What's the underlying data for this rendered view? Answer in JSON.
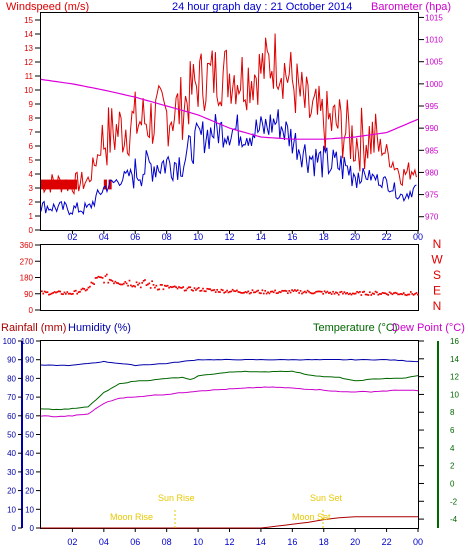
{
  "title": "24 hour graph day : 21 October 2014",
  "colors": {
    "wind": "#dd0000",
    "gust_fill": "#dd0000",
    "avg_wind": "#0000cc",
    "baro": "#dd00dd",
    "dir": "#ee0000",
    "rain": "#aa0000",
    "humidity": "#0000aa",
    "temperature": "#006600",
    "dewpoint": "#cc00cc",
    "sun": "#e8c800",
    "moon": "#e8c800"
  },
  "x_ticks": [
    "02",
    "04",
    "06",
    "08",
    "10",
    "12",
    "14",
    "16",
    "18",
    "20",
    "22",
    "00"
  ],
  "panel1": {
    "left_label": "Windspeed (m/s)",
    "right_label": "Barometer (hpa)",
    "left_ticks": [
      "0",
      "1",
      "2",
      "3",
      "4",
      "5",
      "6",
      "7",
      "8",
      "9",
      "10",
      "11",
      "12",
      "13",
      "14",
      "15"
    ],
    "right_ticks": [
      "970",
      "975",
      "980",
      "985",
      "990",
      "995",
      "1000",
      "1005",
      "1010",
      "1015"
    ]
  },
  "panel2": {
    "left_ticks": [
      "0",
      "90",
      "180",
      "270",
      "360"
    ],
    "compass": [
      "N",
      "W",
      "S",
      "E",
      "N"
    ]
  },
  "panel3": {
    "rain_label": "Rainfall (mm)",
    "hum_label": "Humidity (%)",
    "temp_label": "Temperature (°C)",
    "dew_label": "Dew Point (°C)",
    "rain_ticks": [
      "0",
      "10",
      "20",
      "30",
      "40",
      "50",
      "60",
      "70",
      "80",
      "90",
      "100"
    ],
    "hum_ticks": [
      "0",
      "10",
      "20",
      "30",
      "40",
      "50",
      "60",
      "70",
      "80",
      "90",
      "100"
    ],
    "temp_ticks": [
      "-4",
      "-2",
      "0",
      "2",
      "4",
      "6",
      "8",
      "10",
      "12",
      "14",
      "16"
    ],
    "sun_rise": "Sun Rise",
    "sun_set": "Sun Set",
    "moon_rise": "Moon Rise",
    "moon_set": "Moon Set"
  },
  "chart_data": [
    {
      "type": "line",
      "x_unit": "hours",
      "xlim": [
        0,
        24
      ],
      "ylim": [
        0,
        15.5
      ],
      "y2lim": [
        967,
        1016
      ],
      "series": [
        {
          "name": "Windspeed (m/s)",
          "x": [
            0,
            1,
            2,
            3,
            4,
            5,
            6,
            7,
            8,
            9,
            10,
            11,
            12,
            13,
            14,
            15,
            16,
            17,
            18,
            19,
            20,
            21,
            22,
            23,
            24
          ],
          "values": [
            3.3,
            3.4,
            3.3,
            3.5,
            6.5,
            7.2,
            7.7,
            7.9,
            8.2,
            8.8,
            10.6,
            11.1,
            11.2,
            10.9,
            11.4,
            12.3,
            10.6,
            8.5,
            7.7,
            7.5,
            6.4,
            6.7,
            5.5,
            3.9,
            4.6
          ]
        },
        {
          "name": "Average windspeed (m/s)",
          "x": [
            0,
            1,
            2,
            3,
            4,
            5,
            6,
            7,
            8,
            9,
            10,
            11,
            12,
            13,
            14,
            15,
            16,
            17,
            18,
            19,
            20,
            21,
            22,
            23,
            24
          ],
          "values": [
            1.7,
            1.6,
            1.5,
            1.5,
            3.0,
            3.6,
            4.1,
            4.6,
            4.8,
            4.9,
            6.5,
            7.1,
            7.2,
            7.0,
            7.1,
            7.8,
            6.5,
            5.3,
            4.8,
            4.6,
            4.1,
            3.8,
            3.4,
            2.4,
            3.1
          ]
        },
        {
          "name": "Barometer (hpa)",
          "x": [
            0,
            2,
            4,
            6,
            8,
            10,
            12,
            14,
            16,
            18,
            20,
            22,
            24
          ],
          "values": [
            1001,
            1000,
            998.6,
            997,
            995,
            993,
            990,
            988,
            987.5,
            987.5,
            988,
            989,
            992
          ]
        }
      ]
    },
    {
      "type": "scatter",
      "x_unit": "hours",
      "xlim": [
        0,
        24
      ],
      "ylim": [
        0,
        360
      ],
      "series": [
        {
          "name": "Wind direction (deg)",
          "x": [
            0,
            1,
            2,
            3,
            3.5,
            4,
            5,
            6,
            7,
            8,
            9,
            10,
            11,
            12,
            13,
            14,
            15,
            16,
            17,
            18,
            19,
            20,
            21,
            22,
            23,
            24
          ],
          "values": [
            95,
            95,
            93,
            118,
            165,
            175,
            160,
            150,
            140,
            128,
            118,
            115,
            108,
            105,
            102,
            100,
            100,
            102,
            100,
            97,
            93,
            92,
            93,
            93,
            92,
            90
          ]
        }
      ]
    },
    {
      "type": "line",
      "x_unit": "hours",
      "xlim": [
        0,
        24
      ],
      "ylim": [
        0,
        100
      ],
      "y2lim": [
        -5,
        16
      ],
      "series": [
        {
          "name": "Humidity (%)",
          "x": [
            0,
            2,
            4,
            6,
            8,
            10,
            12,
            14,
            16,
            18,
            20,
            22,
            24
          ],
          "values": [
            87,
            87,
            89,
            87,
            88,
            90,
            90,
            90,
            90,
            90,
            90,
            90,
            89
          ]
        },
        {
          "name": "Temperature (°C)",
          "x": [
            0,
            1,
            2,
            3,
            4,
            5,
            6,
            7,
            8,
            9,
            9.6,
            10,
            11,
            12,
            13,
            14,
            15,
            16,
            17,
            18,
            19,
            20,
            21,
            22,
            23,
            24
          ],
          "values": [
            8.4,
            8.3,
            8.4,
            8.6,
            10.2,
            11.2,
            11.5,
            11.6,
            11.8,
            11.9,
            11.6,
            12.1,
            12.3,
            12.5,
            12.6,
            12.5,
            12.6,
            12.6,
            12.2,
            12,
            11.9,
            11.5,
            11.7,
            11.8,
            11.8,
            12.1
          ]
        },
        {
          "name": "Dew Point (°C)",
          "x": [
            0,
            1,
            2,
            3,
            4,
            5,
            6,
            7,
            8,
            9,
            10,
            11,
            12,
            13,
            14,
            15,
            16,
            17,
            18,
            19,
            20,
            21,
            22,
            23,
            24
          ],
          "values": [
            7.6,
            7.5,
            7.6,
            7.8,
            9.0,
            9.6,
            9.7,
            9.9,
            10.0,
            10.2,
            10.4,
            10.5,
            10.6,
            10.7,
            10.8,
            10.8,
            10.7,
            10.6,
            10.5,
            10.3,
            10.3,
            10.3,
            10.4,
            10.5,
            10.4
          ]
        },
        {
          "name": "Rainfall (mm)",
          "x": [
            0,
            14,
            15,
            16,
            17,
            18,
            19,
            20,
            24
          ],
          "values": [
            0,
            0,
            1,
            2,
            3,
            4.5,
            5.5,
            6,
            6
          ]
        }
      ]
    }
  ]
}
